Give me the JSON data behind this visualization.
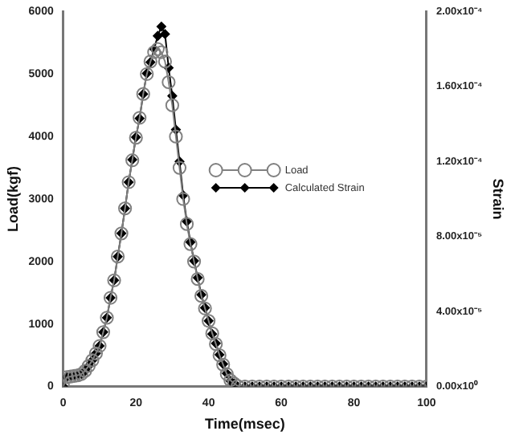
{
  "chart_data": {
    "type": "line",
    "xlabel": "Time(msec)",
    "ylabel": "Load(kgf)",
    "y2label": "Strain",
    "x": [
      0,
      1,
      2,
      3,
      4,
      5,
      6,
      7,
      8,
      9,
      10,
      11,
      12,
      13,
      14,
      15,
      16,
      17,
      18,
      19,
      20,
      21,
      22,
      23,
      24,
      25,
      26,
      27,
      28,
      29,
      30,
      31,
      32,
      33,
      34,
      35,
      36,
      37,
      38,
      39,
      40,
      41,
      42,
      43,
      44,
      45,
      46,
      47,
      48,
      50,
      52,
      54,
      56,
      58,
      60,
      62,
      64,
      66,
      68,
      70,
      72,
      74,
      76,
      78,
      80,
      82,
      84,
      86,
      88,
      90,
      92,
      94,
      96,
      98,
      100
    ],
    "series": [
      {
        "name": "Load",
        "color": "#808080",
        "marker": "circle",
        "values": [
          0,
          150,
          160,
          170,
          180,
          200,
          250,
          330,
          420,
          530,
          650,
          870,
          1100,
          1420,
          1700,
          2080,
          2450,
          2850,
          3270,
          3620,
          3980,
          4300,
          4680,
          5000,
          5200,
          5350,
          5400,
          5350,
          5200,
          4870,
          4500,
          4000,
          3500,
          3000,
          2600,
          2280,
          2000,
          1720,
          1450,
          1250,
          1050,
          850,
          680,
          500,
          350,
          200,
          100,
          50,
          10,
          0,
          0,
          0,
          0,
          0,
          0,
          0,
          0,
          0,
          0,
          0,
          0,
          0,
          0,
          0,
          0,
          0,
          0,
          0,
          0,
          0,
          0,
          0,
          0,
          0,
          0
        ]
      },
      {
        "name": "Calculated Strain",
        "color": "#000000",
        "marker": "diamond",
        "axis": "y2",
        "values": [
          0,
          5e-06,
          5.3e-06,
          5.7e-06,
          6e-06,
          6.7e-06,
          8.3e-06,
          1.1e-05,
          1.4e-05,
          1.77e-05,
          2.17e-05,
          2.9e-05,
          3.67e-05,
          4.73e-05,
          5.67e-05,
          6.93e-05,
          8.17e-05,
          9.5e-05,
          0.000109,
          0.000121,
          0.000133,
          0.000143,
          0.000156,
          0.000167,
          0.000173,
          0.00018,
          0.000187,
          0.000192,
          0.000188,
          0.00017,
          0.000155,
          0.000137,
          0.00012,
          0.000102,
          8.8e-05,
          7.7e-05,
          6.7e-05,
          5.8e-05,
          4.9e-05,
          4.2e-05,
          3.5e-05,
          2.8e-05,
          2.3e-05,
          1.7e-05,
          1.2e-05,
          7e-06,
          3e-06,
          1.7e-06,
          0,
          0,
          0,
          0,
          0,
          0,
          0,
          0,
          0,
          0,
          0,
          0,
          0,
          0,
          0,
          0,
          0,
          0,
          0,
          0,
          0,
          0,
          0,
          0,
          0,
          0,
          0
        ]
      }
    ],
    "xlim": [
      0,
      100
    ],
    "xticks": [
      0,
      20,
      40,
      60,
      80,
      100
    ],
    "ylim": [
      0,
      6000
    ],
    "yticks": [
      0,
      1000,
      2000,
      3000,
      4000,
      5000,
      6000
    ],
    "y2lim": [
      0,
      0.0002
    ],
    "y2ticks": [
      {
        "value": 0,
        "label": "0.00x10⁰"
      },
      {
        "value": 4e-05,
        "label": "4.00x10⁻⁵"
      },
      {
        "value": 8e-05,
        "label": "8.00x10⁻⁵"
      },
      {
        "value": 0.00012,
        "label": "1.20x10⁻⁴"
      },
      {
        "value": 0.00016,
        "label": "1.60x10⁻⁴"
      },
      {
        "value": 0.0002,
        "label": "2.00x10⁻⁴"
      }
    ],
    "legend": "right",
    "grid": false,
    "line_style": "solid"
  }
}
